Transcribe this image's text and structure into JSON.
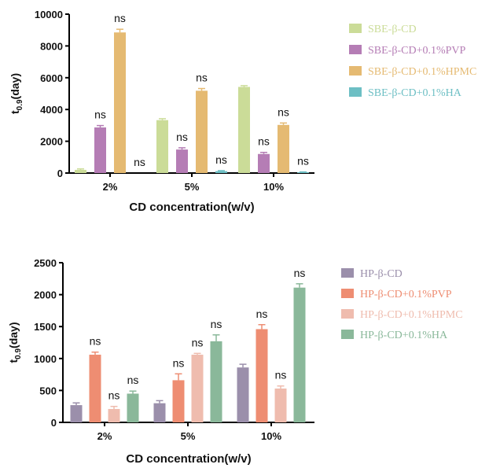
{
  "chart_data": [
    {
      "type": "bar",
      "categories": [
        "2%",
        "5%",
        "10%"
      ],
      "series": [
        {
          "name": "SBE-β-CD",
          "color": "#cbdc98",
          "values": [
            200,
            3330,
            5420
          ],
          "errors": [
            60,
            90,
            80
          ],
          "labels": [
            "",
            "",
            ""
          ]
        },
        {
          "name": "SBE-β-CD+0.1%PVP",
          "color": "#b57db5",
          "values": [
            2870,
            1480,
            1200
          ],
          "errors": [
            120,
            110,
            100
          ],
          "labels": [
            "ns",
            "ns",
            "ns"
          ]
        },
        {
          "name": "SBE-β-CD+0.1%HPMC",
          "color": "#e5ba72",
          "values": [
            8850,
            5180,
            3030
          ],
          "errors": [
            200,
            140,
            120
          ],
          "labels": [
            "ns",
            "ns",
            "ns"
          ]
        },
        {
          "name": "SBE-β-CD+0.1%HA",
          "color": "#6dbfc4",
          "values": [
            0,
            120,
            50
          ],
          "errors": [
            0,
            30,
            20
          ],
          "labels": [
            "ns",
            "ns",
            "ns"
          ]
        }
      ],
      "ylabel": "t0.9(day)",
      "xlabel": "CD concentration(w/v)",
      "ylim": [
        0,
        10000
      ],
      "yticks": [
        "0",
        "2000",
        "4000",
        "6000",
        "8000",
        "10000"
      ],
      "ytick_values": [
        0,
        2000,
        4000,
        6000,
        8000,
        10000
      ],
      "legend_position": "right"
    },
    {
      "type": "bar",
      "categories": [
        "2%",
        "5%",
        "10%"
      ],
      "series": [
        {
          "name": "HP-β-CD",
          "color": "#9b8fab",
          "values": [
            270,
            300,
            860
          ],
          "errors": [
            35,
            40,
            50
          ],
          "labels": [
            "",
            "",
            ""
          ]
        },
        {
          "name": "HP-β-CD+0.1%PVP",
          "color": "#ee8d72",
          "values": [
            1060,
            660,
            1460
          ],
          "errors": [
            40,
            100,
            70
          ],
          "labels": [
            "ns",
            "ns",
            "ns"
          ]
        },
        {
          "name": "HP-β-CD+0.1%HPMC",
          "color": "#efbcae",
          "values": [
            210,
            1060,
            530
          ],
          "errors": [
            40,
            20,
            40
          ],
          "labels": [
            "ns",
            "ns",
            "ns"
          ]
        },
        {
          "name": "HP-β-CD+0.1%HA",
          "color": "#8ab89a",
          "values": [
            450,
            1270,
            2110
          ],
          "errors": [
            40,
            100,
            60
          ],
          "labels": [
            "ns",
            "ns",
            "ns"
          ]
        }
      ],
      "ylabel": "t0.9(day)",
      "xlabel": "CD concentration(w/v)",
      "ylim": [
        0,
        2500
      ],
      "yticks": [
        "0",
        "500",
        "1000",
        "1500",
        "2000",
        "2500"
      ],
      "ytick_values": [
        0,
        500,
        1000,
        1500,
        2000,
        2500
      ],
      "legend_position": "right"
    }
  ]
}
